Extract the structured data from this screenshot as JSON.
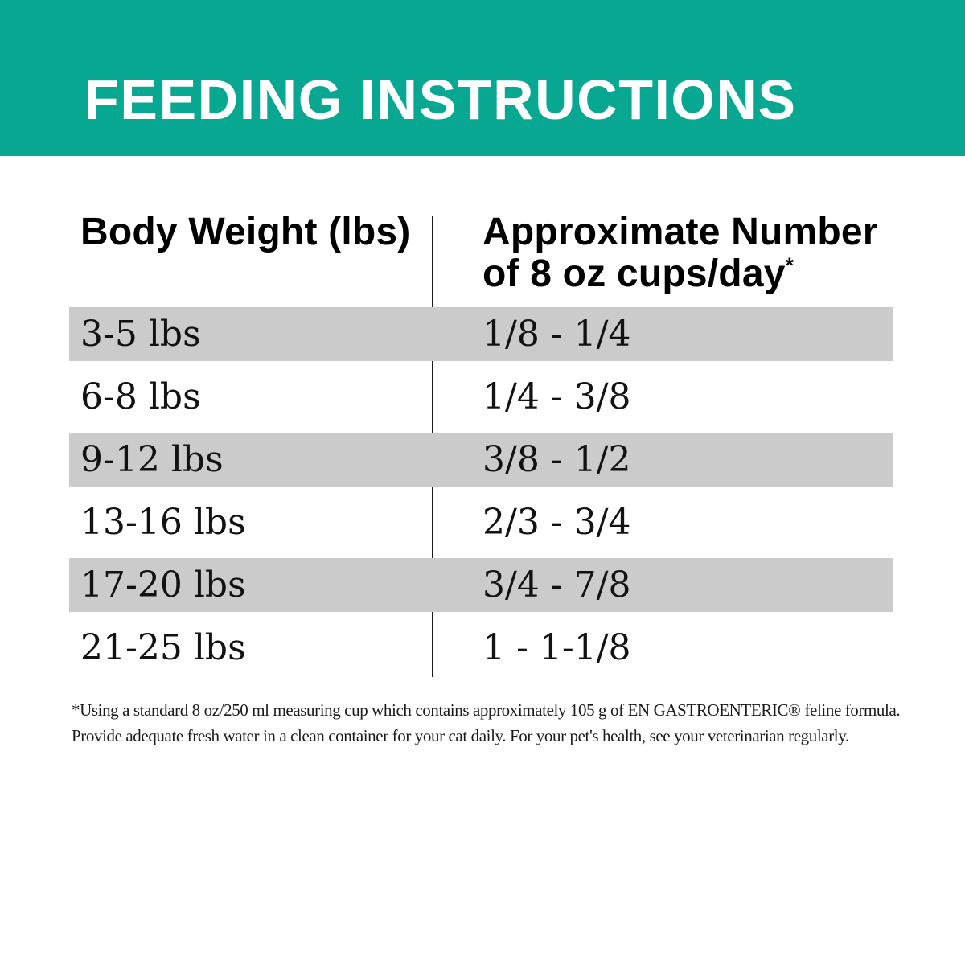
{
  "banner": {
    "title": "FEEDING INSTRUCTIONS",
    "bg_color": "#07A791",
    "text_color": "#FFFFFF"
  },
  "table": {
    "col1_header": "Body Weight (lbs)",
    "col2_header_line1": "Approximate Number",
    "col2_header_line2": "of 8 oz cups/day",
    "col2_header_footnote_marker": "*",
    "shaded_row_color": "#CBCBCB",
    "rows": [
      {
        "weight": "3-5 lbs",
        "cups": "1/8 - 1/4",
        "shaded": true
      },
      {
        "weight": "6-8 lbs",
        "cups": "1/4 - 3/8",
        "shaded": false
      },
      {
        "weight": "9-12 lbs",
        "cups": "3/8 - 1/2",
        "shaded": true
      },
      {
        "weight": "13-16 lbs",
        "cups": "2/3 - 3/4",
        "shaded": false
      },
      {
        "weight": "17-20 lbs",
        "cups": "3/4 - 7/8",
        "shaded": true
      },
      {
        "weight": "21-25 lbs",
        "cups": "1 - 1-1/8",
        "shaded": false
      }
    ]
  },
  "footnote": {
    "line1": "*Using a standard 8 oz/250 ml measuring cup which contains approximately 105 g of EN GASTROENTERIC® feline formula.",
    "line2": "Provide adequate fresh water in a clean container for your cat daily. For your pet's health, see your veterinarian regularly."
  }
}
